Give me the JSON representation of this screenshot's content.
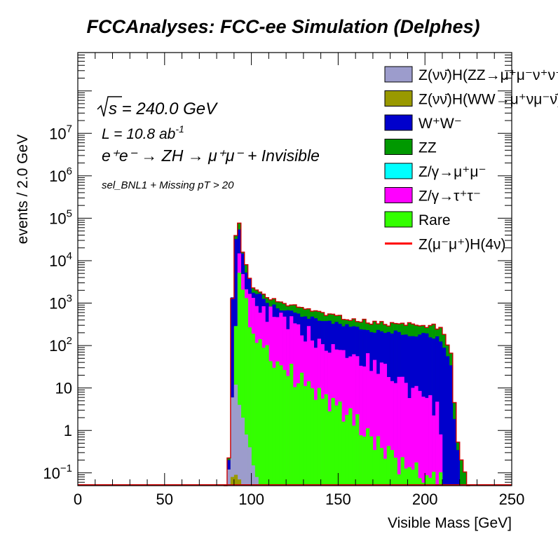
{
  "chart_data": {
    "type": "bar",
    "subtype": "stacked-histogram",
    "title": "FCCAnalyses: FCC-ee Simulation (Delphes)",
    "xlabel": "Visible Mass [GeV]",
    "ylabel": "events / 2.0 GeV",
    "xlim": [
      0,
      250
    ],
    "ylim": [
      0.05,
      800000000
    ],
    "yscale": "log",
    "bin_width": 2.0,
    "grid": false,
    "legend_position": "top-right",
    "x_ticks": [
      {
        "value": 0,
        "label": "0"
      },
      {
        "value": 50,
        "label": "50"
      },
      {
        "value": 100,
        "label": "100"
      },
      {
        "value": 150,
        "label": "150"
      },
      {
        "value": 200,
        "label": "200"
      },
      {
        "value": 250,
        "label": "250"
      }
    ],
    "y_ticks": [
      {
        "value": 0.1,
        "base": "10",
        "exp": "−1"
      },
      {
        "value": 1,
        "base": "1",
        "exp": ""
      },
      {
        "value": 10,
        "base": "10",
        "exp": ""
      },
      {
        "value": 100,
        "base": "10",
        "exp": "2"
      },
      {
        "value": 1000,
        "base": "10",
        "exp": "3"
      },
      {
        "value": 10000,
        "base": "10",
        "exp": "4"
      },
      {
        "value": 100000,
        "base": "10",
        "exp": "5"
      },
      {
        "value": 1000000,
        "base": "10",
        "exp": "6"
      },
      {
        "value": 10000000,
        "base": "10",
        "exp": "7"
      }
    ],
    "annotations": {
      "sqrt_s_label": "s",
      "energy": " = 240.0 GeV",
      "lumi_prefix": "L = 10.8 ab",
      "lumi_exp": "-1",
      "process": "e⁺e⁻ → ZH → μ⁺μ⁻ + Invisible",
      "selection": "sel_BNL1 + Missing pT > 20"
    },
    "legend": [
      {
        "label": "Z(νν̄)H(ZZ→μ⁺μ⁻ν⁺ν⁻)",
        "color": "#9c9ccc",
        "kind": "box"
      },
      {
        "label": "Z(νν̄)H(WW→μ⁺νμ⁻ν̄)",
        "color": "#999900",
        "kind": "box"
      },
      {
        "label": "W⁺W⁻",
        "color": "#0000cc",
        "kind": "box"
      },
      {
        "label": "ZZ",
        "color": "#009900",
        "kind": "box"
      },
      {
        "label": "Z/γ→μ⁺μ⁻",
        "color": "#00ffff",
        "kind": "box"
      },
      {
        "label": "Z/γ→τ⁺τ⁻",
        "color": "#ff00ff",
        "kind": "box"
      },
      {
        "label": "Rare",
        "color": "#33ff00",
        "kind": "box"
      },
      {
        "label": "Z(μ⁻μ⁺)H(4ν)",
        "color": "#ff0000",
        "kind": "line"
      }
    ],
    "bin_edges_range": [
      84,
      226
    ],
    "series": [
      {
        "name": "Rare",
        "color": "#33ff00",
        "y_at": [
          [
            86,
            0
          ],
          [
            88,
            3
          ],
          [
            90,
            200
          ],
          [
            92,
            5000
          ],
          [
            94,
            1500
          ],
          [
            96,
            800
          ],
          [
            100,
            250
          ],
          [
            110,
            60
          ],
          [
            120,
            25
          ],
          [
            130,
            12
          ],
          [
            140,
            6
          ],
          [
            150,
            3
          ],
          [
            160,
            1.5
          ],
          [
            170,
            0.6
          ],
          [
            180,
            0.2
          ],
          [
            190,
            0.12
          ],
          [
            200,
            0.08
          ],
          [
            208,
            0.06
          ],
          [
            210,
            0
          ]
        ]
      },
      {
        "name": "Z/γ→τ⁺τ⁻",
        "color": "#ff00ff",
        "y_at": [
          [
            86,
            0
          ],
          [
            88,
            5
          ],
          [
            90,
            400
          ],
          [
            92,
            9000
          ],
          [
            94,
            4000
          ],
          [
            96,
            2500
          ],
          [
            100,
            1200
          ],
          [
            110,
            500
          ],
          [
            120,
            300
          ],
          [
            130,
            200
          ],
          [
            140,
            130
          ],
          [
            150,
            90
          ],
          [
            160,
            55
          ],
          [
            170,
            35
          ],
          [
            180,
            20
          ],
          [
            190,
            10
          ],
          [
            200,
            5
          ],
          [
            206,
            3
          ],
          [
            208,
            0.5
          ],
          [
            210,
            0
          ]
        ]
      },
      {
        "name": "W⁺W⁻",
        "color": "#0000cc",
        "y_at": [
          [
            84,
            0
          ],
          [
            86,
            0.2
          ],
          [
            88,
            1200
          ],
          [
            90,
            30000
          ],
          [
            92,
            60000
          ],
          [
            94,
            15000
          ],
          [
            96,
            6000
          ],
          [
            100,
            2000
          ],
          [
            110,
            900
          ],
          [
            120,
            650
          ],
          [
            130,
            500
          ],
          [
            140,
            400
          ],
          [
            150,
            320
          ],
          [
            160,
            260
          ],
          [
            170,
            220
          ],
          [
            180,
            200
          ],
          [
            190,
            190
          ],
          [
            200,
            180
          ],
          [
            206,
            150
          ],
          [
            210,
            100
          ],
          [
            214,
            30
          ],
          [
            216,
            2
          ],
          [
            218,
            0.3
          ],
          [
            220,
            0
          ]
        ]
      },
      {
        "name": "ZZ",
        "color": "#009900",
        "y_at": [
          [
            84,
            0
          ],
          [
            86,
            0.2
          ],
          [
            88,
            1300
          ],
          [
            90,
            35000
          ],
          [
            92,
            75000
          ],
          [
            94,
            18000
          ],
          [
            96,
            7000
          ],
          [
            100,
            2600
          ],
          [
            110,
            1200
          ],
          [
            120,
            900
          ],
          [
            130,
            700
          ],
          [
            140,
            560
          ],
          [
            150,
            450
          ],
          [
            160,
            380
          ],
          [
            170,
            340
          ],
          [
            180,
            320
          ],
          [
            190,
            310
          ],
          [
            200,
            305
          ],
          [
            206,
            280
          ],
          [
            210,
            200
          ],
          [
            214,
            60
          ],
          [
            216,
            5
          ],
          [
            218,
            0.5
          ],
          [
            222,
            0.1
          ],
          [
            224,
            0
          ]
        ]
      }
    ]
  }
}
